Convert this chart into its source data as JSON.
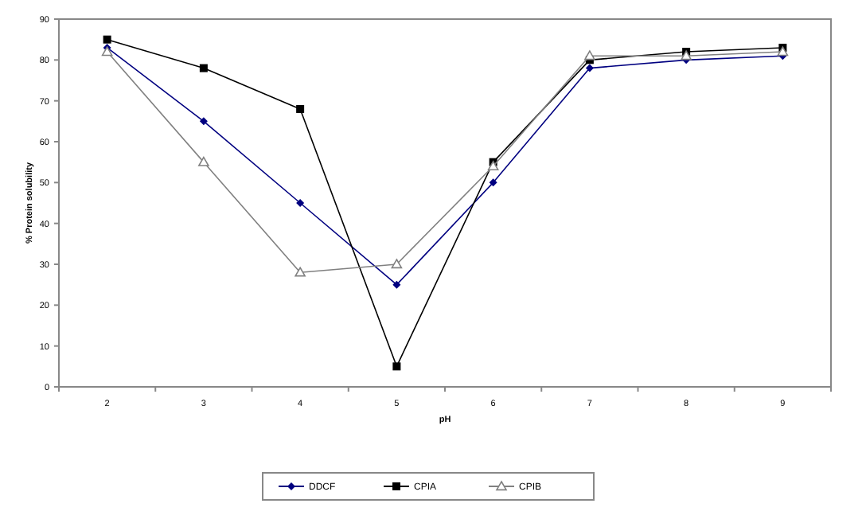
{
  "chart_data": {
    "type": "line",
    "xlabel": "pH",
    "ylabel": "% Protein solubility",
    "categories": [
      "2",
      "3",
      "4",
      "5",
      "6",
      "7",
      "8",
      "9"
    ],
    "ylim": [
      0,
      90
    ],
    "yticks": [
      0,
      10,
      20,
      30,
      40,
      50,
      60,
      70,
      80,
      90
    ],
    "legend": "bottom",
    "grid": false,
    "series": [
      {
        "name": "DDCF",
        "color": "#000080",
        "marker": "diamond",
        "values": [
          83,
          65,
          45,
          25,
          50,
          78,
          80,
          81
        ]
      },
      {
        "name": "CPIA",
        "color": "#000000",
        "marker": "square",
        "values": [
          85,
          78,
          68,
          5,
          55,
          80,
          82,
          83
        ]
      },
      {
        "name": "CPIB",
        "color": "#808080",
        "marker": "triangle",
        "values": [
          82,
          55,
          28,
          30,
          54,
          81,
          81,
          82
        ]
      }
    ]
  }
}
